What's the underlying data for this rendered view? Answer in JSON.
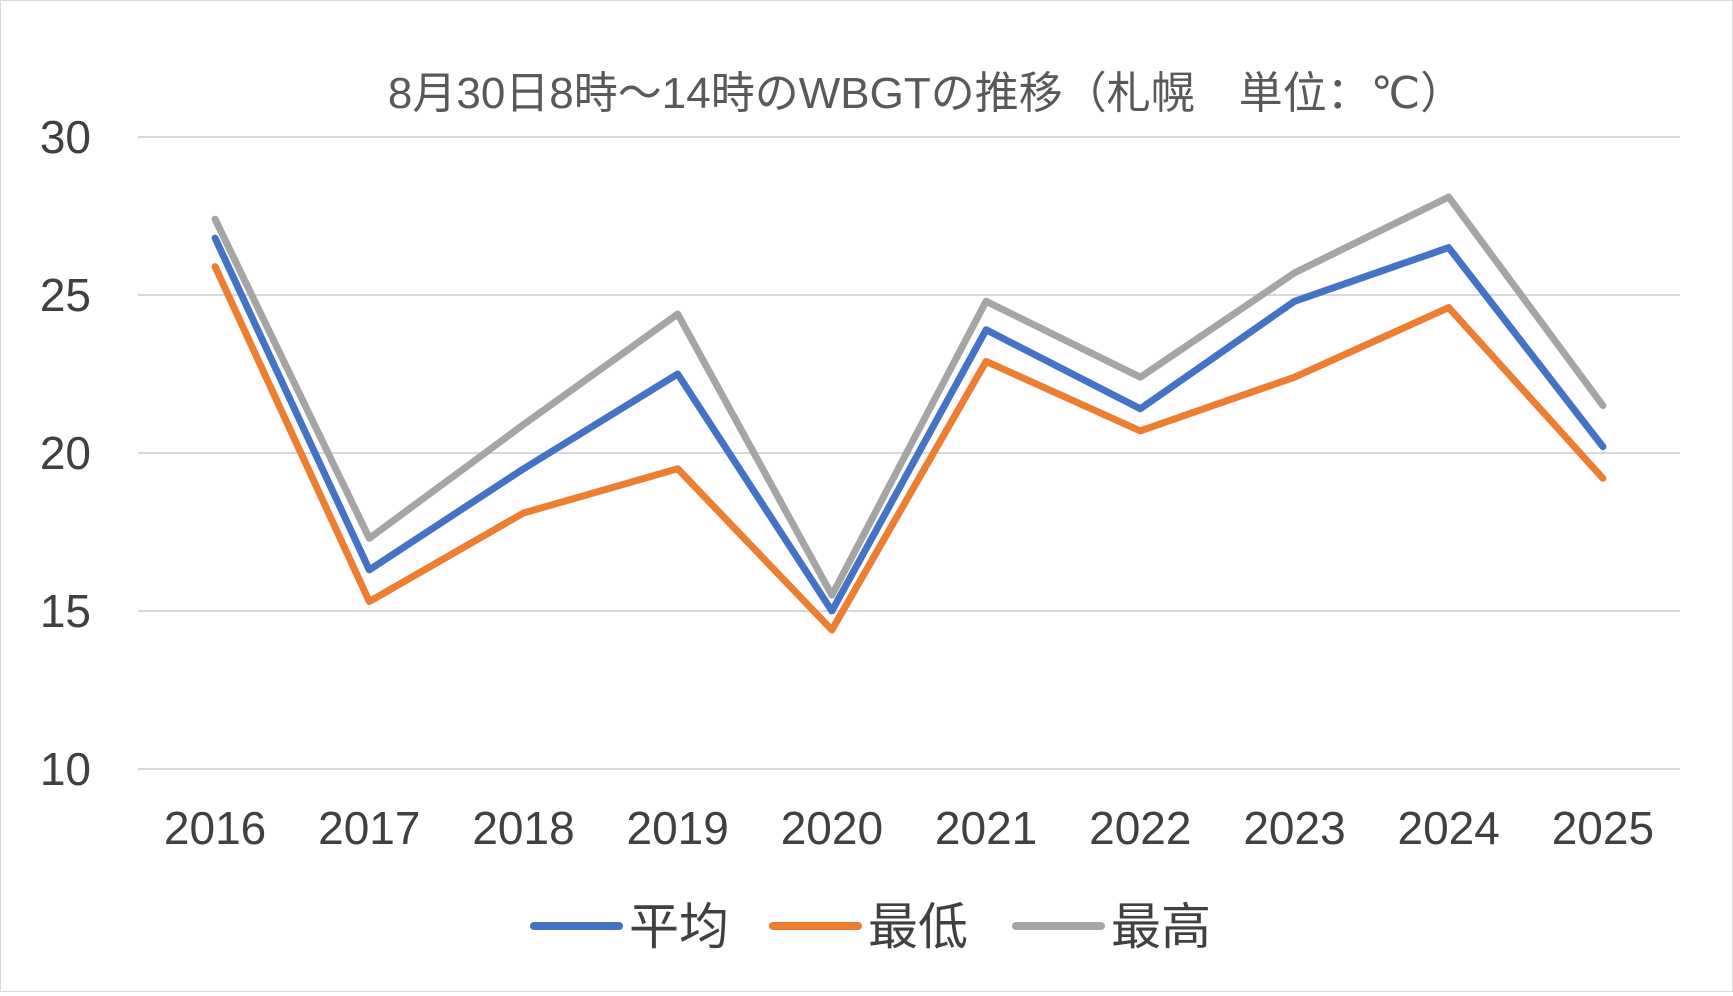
{
  "chart_data": {
    "type": "line",
    "title": "8月30日8時～14時のWBGTの推移（札幌　単位：℃）",
    "xlabel": "",
    "ylabel": "",
    "categories": [
      "2016",
      "2017",
      "2018",
      "2019",
      "2020",
      "2021",
      "2022",
      "2023",
      "2024",
      "2025"
    ],
    "ylim": [
      10,
      30
    ],
    "yticks": [
      10,
      15,
      20,
      25,
      30
    ],
    "grid": true,
    "legend_position": "bottom",
    "series": [
      {
        "name": "平均",
        "color": "#4472c4",
        "values": [
          26.8,
          16.3,
          19.5,
          22.5,
          15.0,
          23.9,
          21.4,
          24.8,
          26.5,
          20.2
        ]
      },
      {
        "name": "最低",
        "color": "#ed7d31",
        "values": [
          25.9,
          15.3,
          18.1,
          19.5,
          14.4,
          22.9,
          20.7,
          22.4,
          24.6,
          19.2
        ]
      },
      {
        "name": "最高",
        "color": "#a5a5a5",
        "values": [
          27.4,
          17.3,
          20.9,
          24.4,
          15.5,
          24.8,
          22.4,
          25.7,
          28.1,
          21.5
        ]
      }
    ]
  }
}
